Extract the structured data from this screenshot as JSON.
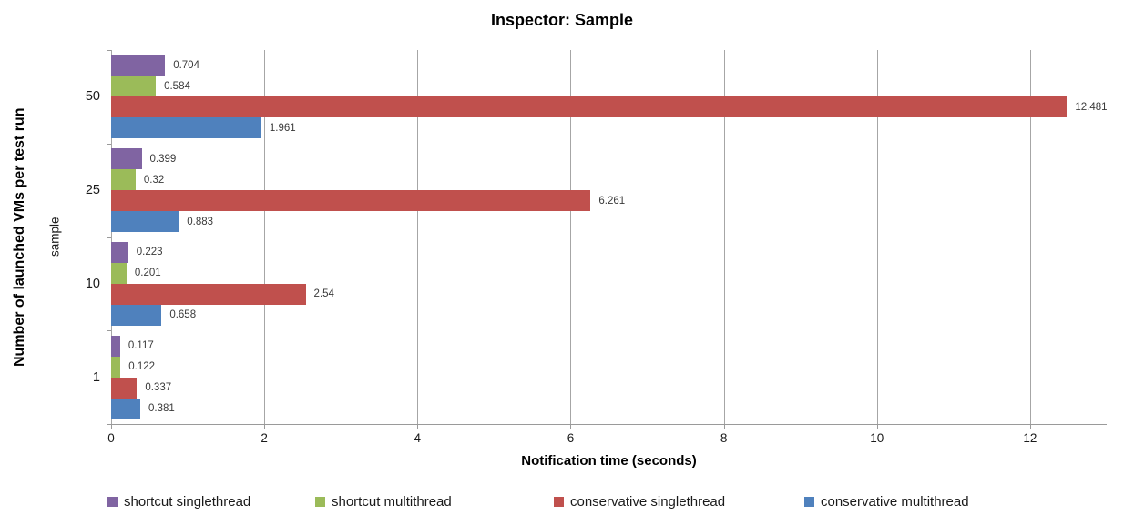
{
  "chart_data": {
    "type": "bar",
    "orientation": "horizontal",
    "title": "Inspector: Sample",
    "xlabel": "Notification time (seconds)",
    "ylabel": "Number of launched VMs per test run",
    "ylabel_secondary": "sample",
    "categories": [
      "50",
      "25",
      "10",
      "1"
    ],
    "series": [
      {
        "name": "shortcut singlethread",
        "color": "#8064A2",
        "values": [
          0.704,
          0.399,
          0.223,
          0.117
        ]
      },
      {
        "name": "shortcut multithread",
        "color": "#9BBB59",
        "values": [
          0.584,
          0.32,
          0.201,
          0.122
        ]
      },
      {
        "name": "conservative singlethread",
        "color": "#C0504D",
        "values": [
          12.481,
          6.261,
          2.54,
          0.337
        ]
      },
      {
        "name": "conservative multithread",
        "color": "#4F81BD",
        "values": [
          1.961,
          0.883,
          0.658,
          0.381
        ]
      }
    ],
    "xlim": [
      0,
      13
    ],
    "xticks": [
      0,
      2,
      4,
      6,
      8,
      10,
      12
    ],
    "grid": "vertical",
    "gridline_color": "#A6A6A6",
    "legend_position": "bottom",
    "data_labels": true,
    "background": "#FFFFFF"
  }
}
